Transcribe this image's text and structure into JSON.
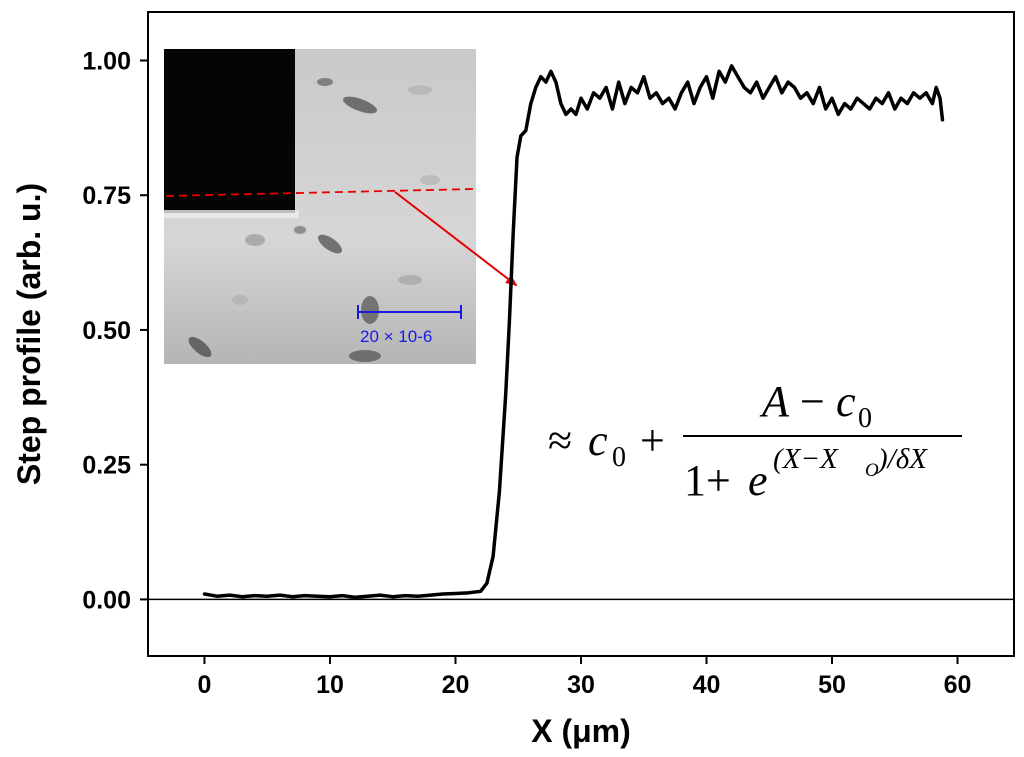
{
  "chart_data": {
    "type": "line",
    "title": "",
    "xlabel": "X (μm)",
    "ylabel": "Step profile (arb. u.)",
    "xlim": [
      -4.5,
      64.5
    ],
    "ylim": [
      -0.105,
      1.09
    ],
    "xticks": [
      "0",
      "10",
      "20",
      "30",
      "40",
      "50",
      "60"
    ],
    "yticks": [
      "0.00",
      "0.25",
      "0.50",
      "0.75",
      "1.00"
    ],
    "grid": false,
    "legend": "none",
    "baseline": 0,
    "line_color": "#000000",
    "series": [
      {
        "x": [
          0,
          1,
          2,
          3,
          4,
          5,
          6,
          7,
          8,
          9,
          10,
          11,
          12,
          13,
          14,
          15,
          16,
          17,
          18,
          19,
          20,
          21,
          22,
          22.5,
          23,
          23.5,
          24,
          24.3,
          24.6,
          24.9,
          25.2,
          25.6,
          26,
          26.4,
          26.8,
          27.2,
          27.6,
          28,
          28.4,
          28.8,
          29.2,
          29.6,
          30,
          30.5,
          31,
          31.5,
          32,
          32.5,
          33,
          33.5,
          34,
          34.5,
          35,
          35.5,
          36,
          36.5,
          37,
          37.5,
          38,
          38.5,
          39,
          39.5,
          40,
          40.5,
          41,
          41.5,
          42,
          42.5,
          43,
          43.5,
          44,
          44.5,
          45,
          45.5,
          46,
          46.5,
          47,
          47.5,
          48,
          48.5,
          49,
          49.5,
          50,
          50.5,
          51,
          51.5,
          52,
          52.5,
          53,
          53.5,
          54,
          54.5,
          55,
          55.5,
          56,
          56.5,
          57,
          57.5,
          58,
          58.3,
          58.6,
          58.8
        ],
        "y": [
          0.01,
          0.006,
          0.008,
          0.005,
          0.007,
          0.006,
          0.008,
          0.005,
          0.007,
          0.006,
          0.005,
          0.007,
          0.004,
          0.006,
          0.008,
          0.005,
          0.007,
          0.006,
          0.008,
          0.01,
          0.011,
          0.012,
          0.015,
          0.03,
          0.08,
          0.2,
          0.38,
          0.52,
          0.68,
          0.82,
          0.86,
          0.87,
          0.92,
          0.95,
          0.97,
          0.96,
          0.98,
          0.96,
          0.92,
          0.9,
          0.91,
          0.9,
          0.93,
          0.91,
          0.94,
          0.93,
          0.95,
          0.91,
          0.96,
          0.92,
          0.95,
          0.94,
          0.97,
          0.93,
          0.94,
          0.92,
          0.93,
          0.91,
          0.94,
          0.96,
          0.92,
          0.95,
          0.97,
          0.93,
          0.98,
          0.96,
          0.99,
          0.97,
          0.95,
          0.94,
          0.96,
          0.93,
          0.95,
          0.97,
          0.94,
          0.96,
          0.95,
          0.93,
          0.94,
          0.92,
          0.95,
          0.91,
          0.93,
          0.9,
          0.92,
          0.91,
          0.93,
          0.92,
          0.91,
          0.93,
          0.92,
          0.94,
          0.91,
          0.93,
          0.92,
          0.94,
          0.93,
          0.94,
          0.92,
          0.95,
          0.93,
          0.89
        ]
      }
    ],
    "equation": {
      "approx": "≈",
      "c": "c",
      "zero": "0",
      "plus": "+",
      "A": "A",
      "minus": "−",
      "one": "1",
      "e": "e",
      "exponent": "(X−X",
      "exponent_sub": "O",
      "exponent_end": ")/δX"
    },
    "inset": {
      "scale_bar_label": "20 × 10-6",
      "scale_color": "#1a1ae6",
      "profile_line_color": "#e60000",
      "arrow_color": "#e60000"
    }
  }
}
